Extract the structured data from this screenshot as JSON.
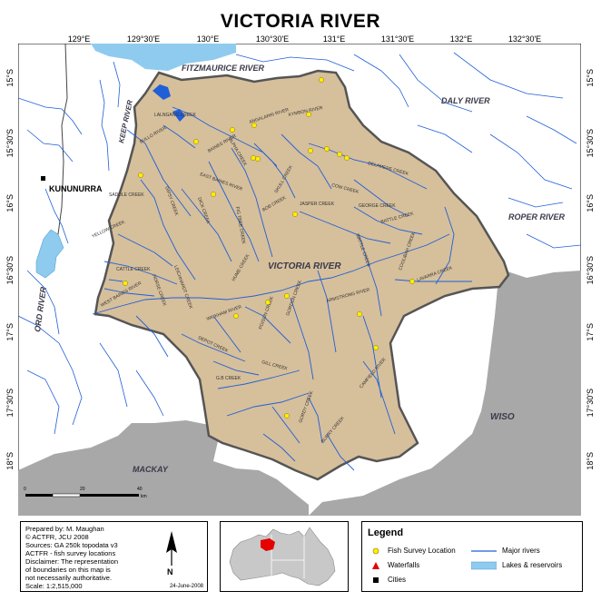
{
  "title": "VICTORIA RIVER",
  "longitude_labels": [
    "129°E",
    "129°30'E",
    "130°E",
    "130°30'E",
    "131°E",
    "131°30'E",
    "132°E",
    "132°30'E"
  ],
  "latitude_labels": [
    "15°S",
    "15°30'S",
    "16°S",
    "16°30'S",
    "17°S",
    "17°30'S",
    "18°S"
  ],
  "region_labels": {
    "fitzmaurice": "FITZMAURICE RIVER",
    "daly": "DALY RIVER",
    "keep": "KEEP RIVER",
    "roper": "ROPER RIVER",
    "ord": "ORD RIVER",
    "wiso": "WISO",
    "mackay": "MACKAY",
    "victoria": "VICTORIA RIVER"
  },
  "city_label": "KUNUNURRA",
  "creek_labels": {
    "lalngang": "LALNGANG CREEK",
    "angalarri": "ANGALARRI RIVER",
    "kymbon": "KYMBON RIVER",
    "bullo": "BULLO RIVER",
    "baines": "BAINES RIVER",
    "alpha": "ALPHA CREEK",
    "east_baines": "EAST BAINES RIVER",
    "saddle": "SADDLE CREEK",
    "gipsy": "GIPSY CREEK",
    "dick": "DICK CREEK",
    "skull": "SKULL CREEK",
    "delamere": "DELAMERE CREEK",
    "jasper": "JASPER CREEK",
    "cow": "COW CREEK",
    "george": "GEORGE CREEK",
    "battle": "BATTLE CREEK",
    "fig_tree": "FIG TREE CREEK",
    "bob": "BOB CREEK",
    "yellow": "YELLOW CREEK",
    "cattle": "CATTLE CREEK",
    "west_baines": "WEST BAINES RIVER",
    "horse": "HORSE CREEK",
    "leichhardt": "LEICHHARDT CREEK",
    "hume": "HUME CREEK",
    "wickham": "WICKHAM RIVER",
    "depot": "DEPOT CREEK",
    "poison": "POISON CREEK",
    "gordon": "GORDON CREEK",
    "armstrong": "ARMSTRONG RIVER",
    "lavarra": "LAVARRA CREEK",
    "coolibah": "COOLIBAH CREEK",
    "wattle": "WATTLE CREEK",
    "gill": "GILL CREEK",
    "gs": "G.B CREEK",
    "camfield": "CAMFIELD RIVER",
    "gordy": "GORDY CREEK",
    "burry": "BURRY CREEK"
  },
  "scalebar": {
    "labels": [
      "0",
      "20",
      "40"
    ],
    "unit": "km"
  },
  "info": {
    "lines": [
      "Prepared  by:  M.  Maughan",
      "©    ACTFR,    JCU    2008",
      "Sources: GA 250k topodata v3",
      "ACTFR - fish survey locations",
      "Disclaimer: The representation",
      "of  boundaries  on  this  map  is",
      "not    necessarily   authoritative.",
      "Scale:   1:2,515,000"
    ],
    "date": "24-June-2008"
  },
  "legend": {
    "title": "Legend",
    "items": {
      "fish_survey": "Fish Survey Location",
      "waterfalls": "Waterfalls",
      "cities": "Cities",
      "major_rivers": "Major rivers",
      "lakes": "Lakes & reservoirs"
    }
  },
  "colors": {
    "catchment_fill": "#d6bf9b",
    "catchment_border": "#555555",
    "river": "#1f5fd8",
    "lake": "#8ecbee",
    "desert": "#a8a8a8",
    "survey_point": "#ffee00",
    "waterfall": "#e60000",
    "city": "#000000"
  }
}
